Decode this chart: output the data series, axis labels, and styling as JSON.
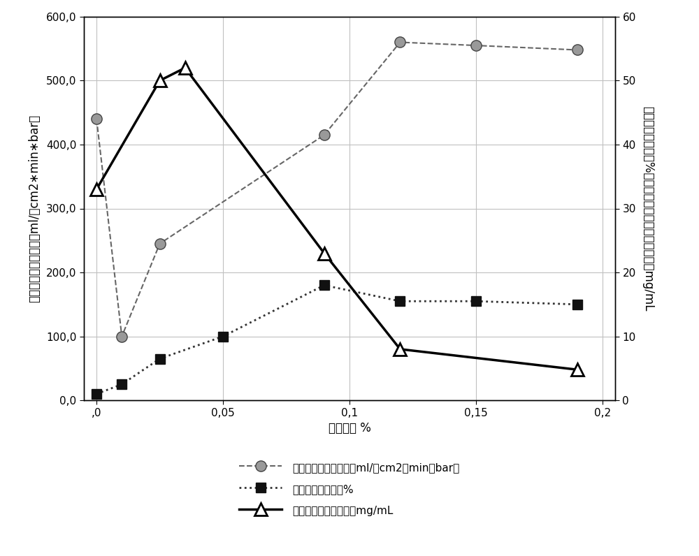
{
  "permeability_x": [
    0,
    0.01,
    0.025,
    0.09,
    0.12,
    0.15,
    0.19
  ],
  "permeability_y": [
    440,
    100,
    245,
    415,
    560,
    555,
    548
  ],
  "sulfation_x": [
    0,
    0.01,
    0.025,
    0.05,
    0.09,
    0.12,
    0.15,
    0.19
  ],
  "sulfation_y": [
    10,
    25,
    65,
    100,
    180,
    155,
    155,
    150
  ],
  "lysozyme_x": [
    0,
    0.025,
    0.035,
    0.09,
    0.12,
    0.19
  ],
  "lysozyme_y": [
    330,
    500,
    520,
    230,
    80,
    48
  ],
  "xlabel": "交联程度 %",
  "ylabel_left": "对反渗透水的透过性，ml/（cm2∗min∗bar）",
  "ylabel_right": "硫酸化程度（重量%）和对溶菌酶的动态结合能力，mg/mL",
  "legend_permeability": "对反渗透水的透过性，ml/（cm2＊min＊bar）",
  "legend_sulfation": "硫酸化程度，重量%",
  "legend_lysozyme": "对溶菌酶的结合能力，mg/mL",
  "ylim_left": [
    0,
    600
  ],
  "ylim_right": [
    0,
    60
  ],
  "xlim": [
    -0.005,
    0.205
  ],
  "yticks_left": [
    0,
    100,
    200,
    300,
    400,
    500,
    600
  ],
  "ytick_labels_left": [
    "0,0",
    "100,0",
    "200,0",
    "300,0",
    "400,0",
    "500,0",
    "600,0"
  ],
  "yticks_right": [
    0,
    10,
    20,
    30,
    40,
    50,
    60
  ],
  "ytick_labels_right": [
    "0",
    "10",
    "20",
    "30",
    "40",
    "50",
    "60"
  ],
  "xticks": [
    0,
    0.05,
    0.1,
    0.15,
    0.2
  ],
  "xtick_labels": [
    ",0",
    "0,05",
    "0,1",
    "0,15",
    "0,2"
  ],
  "bg_color": "#ffffff",
  "grid_color": "#c0c0c0"
}
